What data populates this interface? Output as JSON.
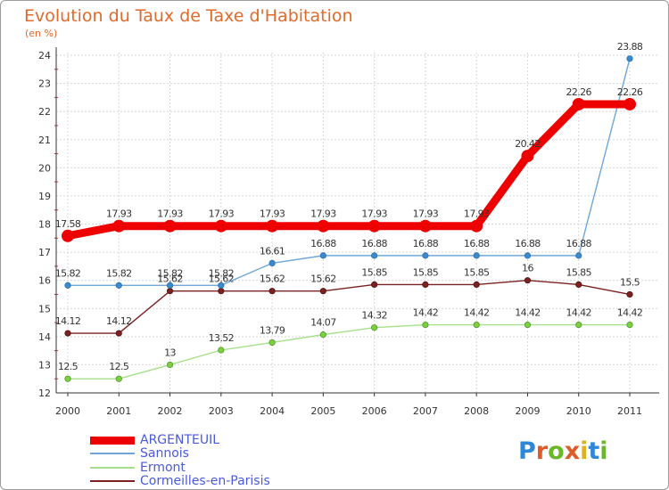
{
  "title": "Evolution du Taux de Taxe d'Habitation",
  "unit": "(en %)",
  "logo": "Proxiti",
  "chart_data": {
    "type": "line",
    "title": "Evolution du Taux de Taxe d'Habitation",
    "ylabel": "(en %)",
    "xlabel": "",
    "x": [
      "2000",
      "2001",
      "2002",
      "2003",
      "2004",
      "2005",
      "2006",
      "2007",
      "2008",
      "2009",
      "2010",
      "2011"
    ],
    "ylim": [
      12,
      24
    ],
    "yticks": [
      "12",
      "13",
      "14",
      "15",
      "16",
      "17",
      "18",
      "19",
      "20",
      "21",
      "22",
      "23",
      "24"
    ],
    "grid": true,
    "series": [
      {
        "name": "ARGENTEUIL",
        "color": "#ee0000",
        "values": [
          17.58,
          17.93,
          17.93,
          17.93,
          17.93,
          17.93,
          17.93,
          17.93,
          17.93,
          20.42,
          22.26,
          22.26
        ],
        "labels": [
          "17.58",
          "17.93",
          "17.93",
          "17.93",
          "17.93",
          "17.93",
          "17.93",
          "17.93",
          "17.93",
          "20.42",
          "22.26",
          "22.26"
        ]
      },
      {
        "name": "Sannois",
        "color": "#6ea6d8",
        "values": [
          15.82,
          15.82,
          15.82,
          15.82,
          16.61,
          16.88,
          16.88,
          16.88,
          16.88,
          16.88,
          16.88,
          23.88
        ],
        "labels": [
          "15.82",
          "15.82",
          "15.82",
          "15.82",
          "16.61",
          "16.88",
          "16.88",
          "16.88",
          "16.88",
          "16.88",
          "16.88",
          "23.88"
        ]
      },
      {
        "name": "Ermont",
        "color": "#a6e08a",
        "values": [
          12.5,
          12.5,
          13,
          13.52,
          13.79,
          14.07,
          14.32,
          14.42,
          14.42,
          14.42,
          14.42,
          14.42
        ],
        "labels": [
          "12.5",
          "12.5",
          "13",
          "13.52",
          "13.79",
          "14.07",
          "14.32",
          "14.42",
          "14.42",
          "14.42",
          "14.42",
          "14.42"
        ]
      },
      {
        "name": "Cormeilles-en-Parisis",
        "color": "#7a2222",
        "values": [
          14.12,
          14.12,
          15.62,
          15.62,
          15.62,
          15.62,
          15.85,
          15.85,
          15.85,
          16,
          15.85,
          15.5
        ],
        "labels": [
          "14.12",
          "14.12",
          "15.62",
          "15.62",
          "15.62",
          "15.62",
          "15.85",
          "15.85",
          "15.85",
          "16",
          "15.85",
          "15.5"
        ]
      }
    ]
  }
}
